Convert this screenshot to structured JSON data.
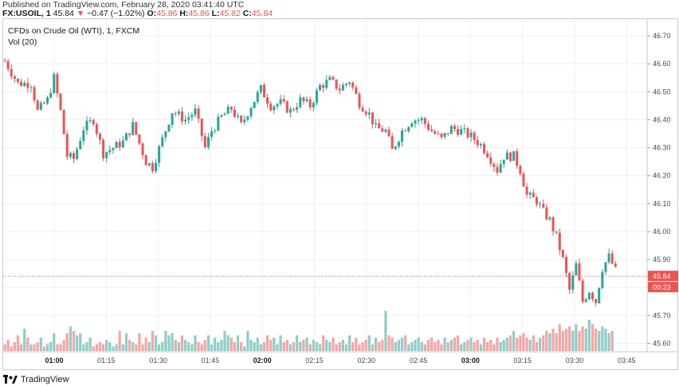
{
  "header": {
    "published": "Published on TradingView.com, February 28, 2020 03:41:40 UTC",
    "symbol": "FX:USOIL, 1",
    "last": "45.84",
    "arrow": "▼",
    "change": "−0.47 (−1.02%)",
    "o_label": "O:",
    "o_value": "45.86",
    "h_label": "H:",
    "h_value": "45.86",
    "l_label": "L:",
    "l_value": "45.82",
    "c_label": "C:",
    "c_value": "45.84"
  },
  "legend": {
    "main": "CFDs on Crude Oil (WTI), 1, FXCM",
    "volume": "Vol (20)"
  },
  "footer": {
    "brand": "TradingView"
  },
  "colors": {
    "up": "#26a69a",
    "down": "#ef5350",
    "vol_up": "#8fcdc6",
    "vol_down": "#f5a6a4",
    "grid": "#eef0f2"
  },
  "chart_data": {
    "type": "candlestick",
    "price_axis": {
      "ticks": [
        "45.60",
        "45.70",
        "45.80",
        "45.90",
        "46.00",
        "46.10",
        "46.20",
        "46.30",
        "46.40",
        "46.50",
        "46.60",
        "46.70"
      ],
      "range": [
        45.58,
        46.73
      ]
    },
    "time_axis": {
      "ticks": [
        "01:00",
        "01:15",
        "01:30",
        "01:45",
        "02:00",
        "02:15",
        "02:30",
        "02:45",
        "03:00",
        "03:15",
        "03:30",
        "03:45"
      ],
      "bold": [
        "01:00",
        "02:00",
        "03:00"
      ]
    },
    "last_price_label": "45.84",
    "countdown_label": "00:23",
    "price_anchors": [
      [
        0,
        46.61
      ],
      [
        4,
        46.53
      ],
      [
        8,
        46.53
      ],
      [
        10,
        46.43
      ],
      [
        13,
        46.47
      ],
      [
        15,
        46.55
      ],
      [
        17,
        46.43
      ],
      [
        19,
        46.27
      ],
      [
        21,
        46.26
      ],
      [
        24,
        46.37
      ],
      [
        27,
        46.4
      ],
      [
        30,
        46.28
      ],
      [
        33,
        46.3
      ],
      [
        36,
        46.32
      ],
      [
        39,
        46.38
      ],
      [
        43,
        46.25
      ],
      [
        45,
        46.23
      ],
      [
        48,
        46.33
      ],
      [
        51,
        46.43
      ],
      [
        55,
        46.4
      ],
      [
        58,
        46.43
      ],
      [
        61,
        46.3
      ],
      [
        63,
        46.36
      ],
      [
        66,
        46.41
      ],
      [
        69,
        46.44
      ],
      [
        72,
        46.38
      ],
      [
        75,
        46.45
      ],
      [
        78,
        46.51
      ],
      [
        81,
        46.45
      ],
      [
        84,
        46.46
      ],
      [
        87,
        46.43
      ],
      [
        90,
        46.47
      ],
      [
        93,
        46.45
      ],
      [
        96,
        46.52
      ],
      [
        99,
        46.54
      ],
      [
        102,
        46.51
      ],
      [
        105,
        46.54
      ],
      [
        108,
        46.46
      ],
      [
        111,
        46.42
      ],
      [
        113,
        46.37
      ],
      [
        116,
        46.36
      ],
      [
        118,
        46.29
      ],
      [
        121,
        46.36
      ],
      [
        124,
        46.4
      ],
      [
        127,
        46.4
      ],
      [
        130,
        46.36
      ],
      [
        133,
        46.33
      ],
      [
        136,
        46.37
      ],
      [
        139,
        46.36
      ],
      [
        142,
        46.34
      ],
      [
        145,
        46.31
      ],
      [
        147,
        46.28
      ],
      [
        150,
        46.22
      ],
      [
        152,
        46.27
      ],
      [
        155,
        46.27
      ],
      [
        157,
        46.22
      ],
      [
        159,
        46.13
      ],
      [
        162,
        46.11
      ],
      [
        164,
        46.07
      ],
      [
        166,
        46.04
      ],
      [
        168,
        45.98
      ],
      [
        170,
        45.9
      ],
      [
        172,
        45.79
      ],
      [
        174,
        45.88
      ],
      [
        176,
        45.75
      ],
      [
        178,
        45.79
      ],
      [
        180,
        45.75
      ],
      [
        182,
        45.87
      ],
      [
        184,
        45.91
      ],
      [
        186,
        45.86
      ]
    ],
    "volume_bars": [
      3,
      5,
      2,
      4,
      7,
      3,
      10,
      6,
      3,
      3,
      4,
      6,
      2,
      3,
      4,
      8,
      3,
      3,
      5,
      8,
      11,
      9,
      7,
      8,
      3,
      4,
      6,
      2,
      3,
      4,
      3,
      5,
      4,
      2,
      3,
      9,
      3,
      8,
      5,
      4,
      3,
      8,
      3,
      6,
      4,
      9,
      7,
      3,
      4,
      9,
      7,
      8,
      5,
      4,
      7,
      5,
      4,
      3,
      7,
      4,
      3,
      5,
      7,
      3,
      6,
      4,
      5,
      9,
      7,
      6,
      4,
      7,
      4,
      2,
      9,
      5,
      4,
      6,
      3,
      4,
      7,
      5,
      6,
      3,
      7,
      4,
      5,
      3,
      4,
      7,
      4,
      5,
      6,
      3,
      5,
      4,
      3,
      7,
      5,
      4,
      6,
      3,
      4,
      5,
      3,
      7,
      4,
      6,
      3,
      4,
      5,
      7,
      3,
      6,
      4,
      5,
      18,
      7,
      6,
      4,
      5,
      6,
      7,
      3,
      4,
      5,
      6,
      4,
      3,
      5,
      6,
      4,
      5,
      3,
      6,
      4,
      5,
      6,
      7,
      3,
      4,
      5,
      6,
      4,
      5,
      3,
      6,
      4,
      5,
      3,
      6,
      4,
      5,
      6,
      7,
      9,
      6,
      7,
      8,
      6,
      5,
      7,
      4,
      6,
      7,
      9,
      8,
      10,
      8,
      12,
      9,
      10,
      11,
      9,
      12,
      9,
      11,
      10,
      14,
      12,
      10,
      9,
      11,
      10,
      8,
      9
    ],
    "volume_range": [
      0,
      30
    ]
  }
}
